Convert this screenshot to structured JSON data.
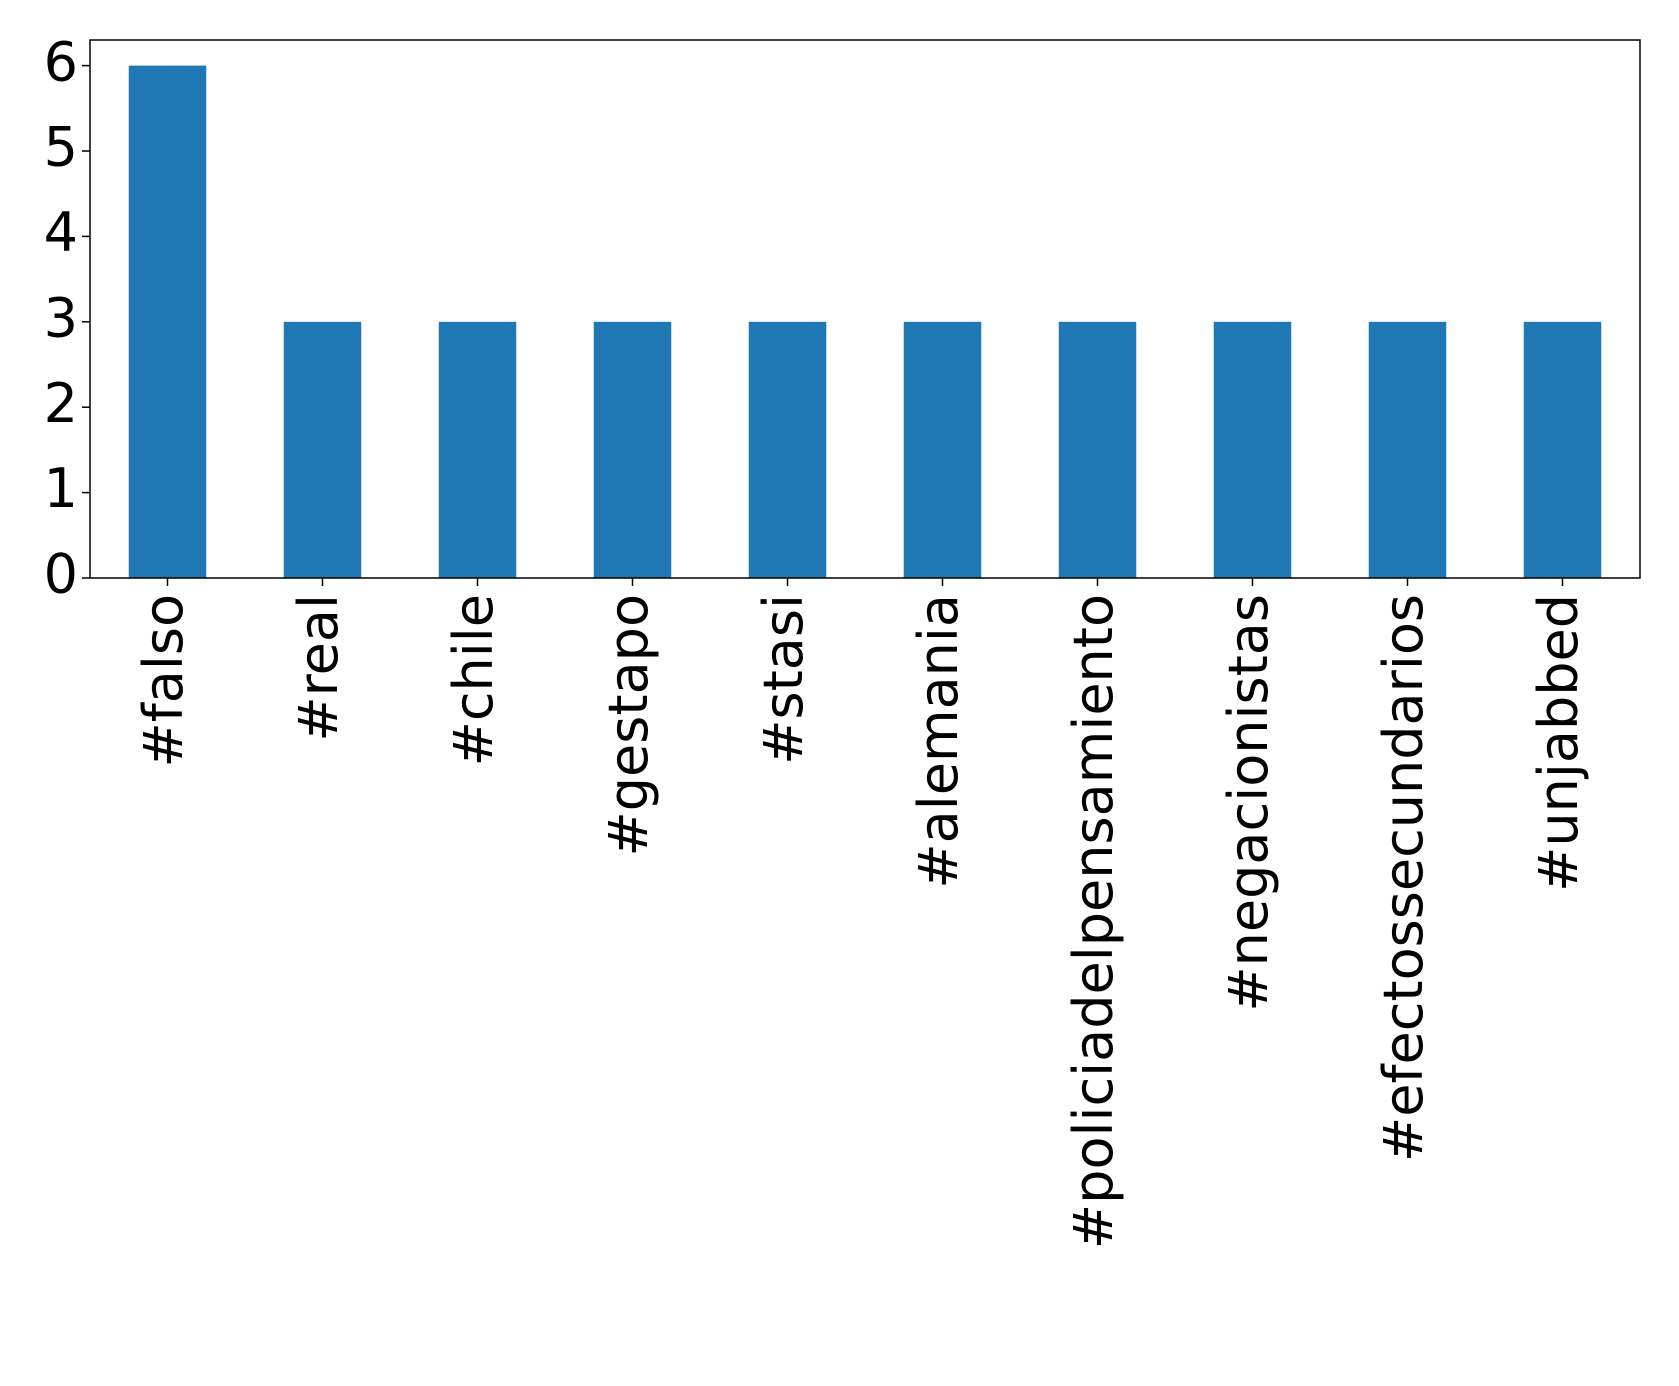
{
  "chart_data": {
    "type": "bar",
    "categories": [
      "#falso",
      "#real",
      "#chile",
      "#gestapo",
      "#stasi",
      "#alemania",
      "#policiadelpensamiento",
      "#negacionistas",
      "#efectossecundarios",
      "#unjabbed"
    ],
    "values": [
      6,
      3,
      3,
      3,
      3,
      3,
      3,
      3,
      3,
      3
    ],
    "color": "#1f77b4",
    "ylim": [
      0,
      6.3
    ],
    "yticks": [
      0,
      1,
      2,
      3,
      4,
      5,
      6
    ],
    "grid": false
  }
}
